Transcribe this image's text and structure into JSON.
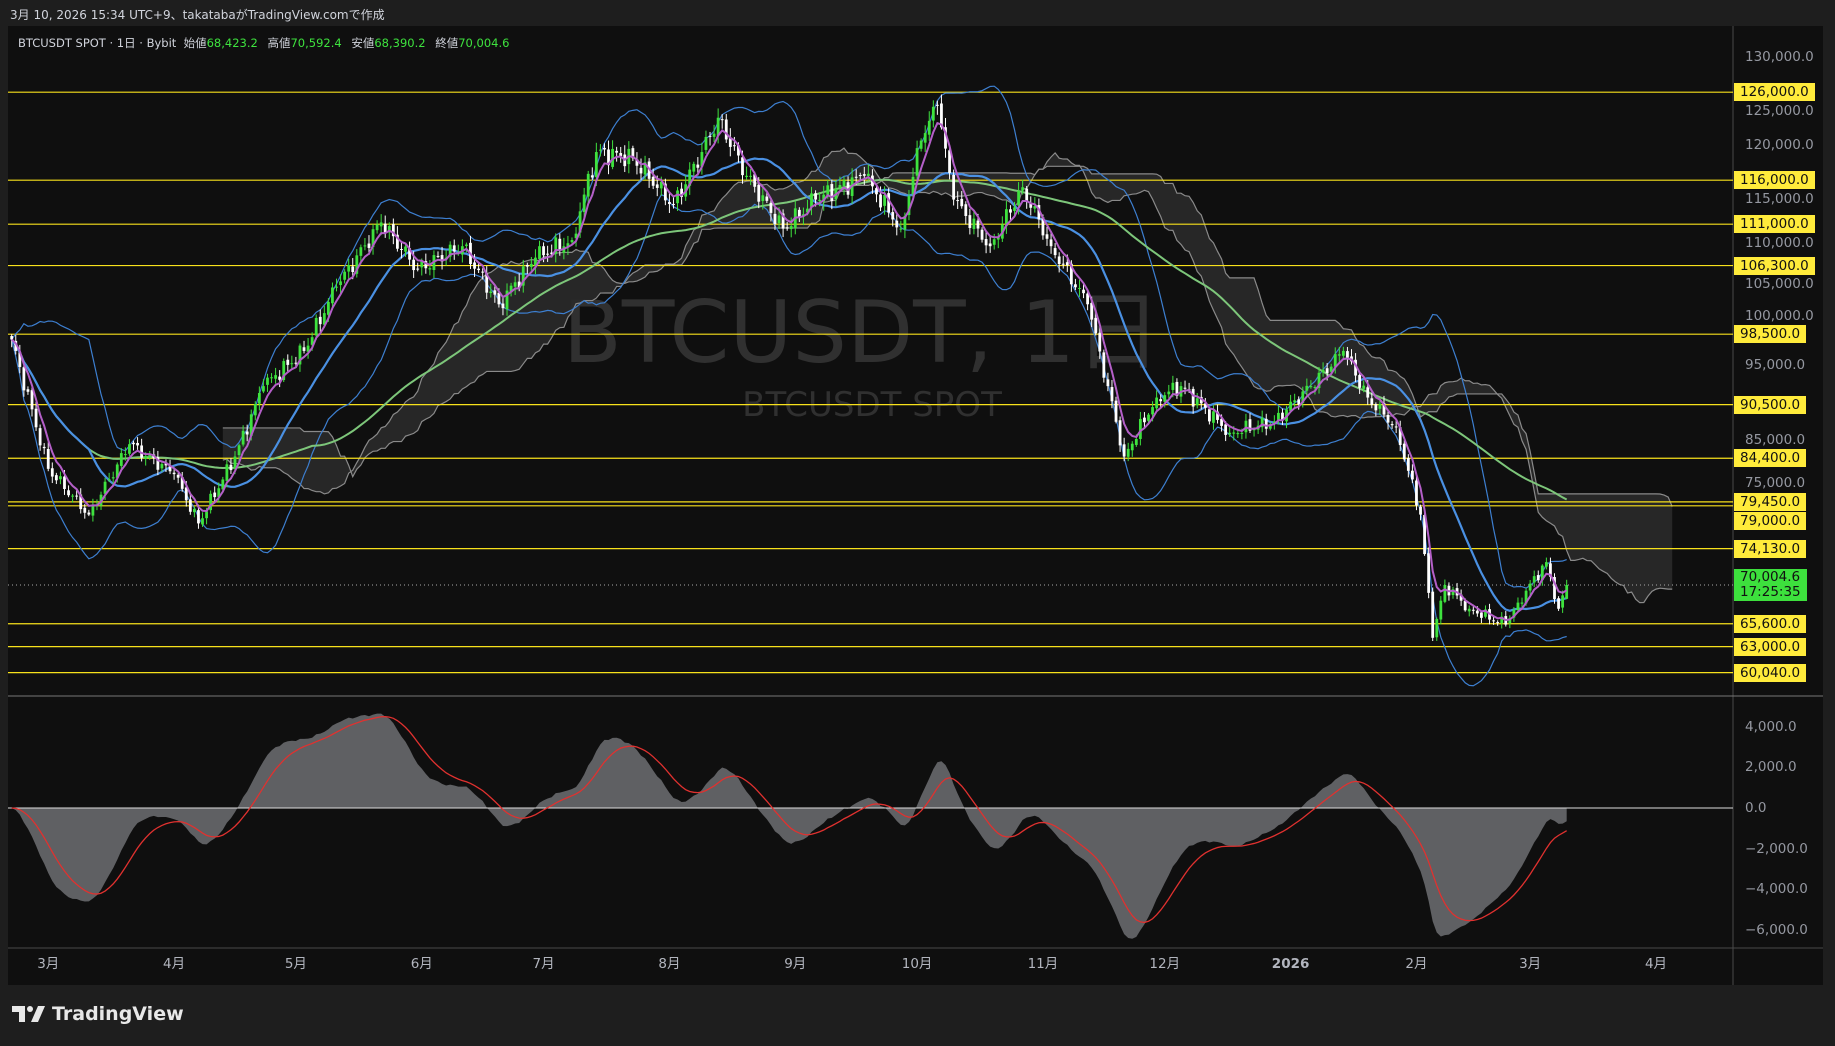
{
  "header": {
    "caption": "3月 10, 2026 15:34 UTC+9、takatabaがTradingView.comで作成"
  },
  "legend": {
    "symbol": "BTCUSDT SPOT · 1日 · Bybit",
    "open_label": "始値",
    "open": "68,423.2",
    "high_label": "高値",
    "high": "70,592.4",
    "low_label": "安値",
    "low": "68,390.2",
    "close_label": "終値",
    "close": "70,004.6"
  },
  "watermark": {
    "title": "BTCUSDT, 1日",
    "subtitle": "BTCUSDT SPOT"
  },
  "price_axis": {
    "ticks": [
      {
        "value": 130000,
        "label": "130,000.0"
      },
      {
        "value": 125000,
        "label": "125,000.0"
      },
      {
        "value": 120000,
        "label": "120,000.0"
      },
      {
        "value": 115000,
        "label": "115,000.0"
      },
      {
        "value": 110000,
        "label": "110,000.0"
      },
      {
        "value": 105000,
        "label": "105,000.0"
      },
      {
        "value": 100000,
        "label": "100,000.0"
      },
      {
        "value": 95000,
        "label": "95,000.0"
      },
      {
        "value": 85000,
        "label": "85,000.0"
      },
      {
        "value": 75000,
        "label": "75,000.0"
      }
    ]
  },
  "levels": [
    {
      "value": 126000,
      "label": "126,000.0"
    },
    {
      "value": 116000,
      "label": "116,000.0"
    },
    {
      "value": 111000,
      "label": "111,000.0"
    },
    {
      "value": 106300,
      "label": "106,300.0"
    },
    {
      "value": 98500,
      "label": "98,500.0"
    },
    {
      "value": 90500,
      "label": "90,500.0"
    },
    {
      "value": 84400,
      "label": "84,400.0"
    },
    {
      "value": 79450,
      "label": "79,450.0"
    },
    {
      "value": 79000,
      "label": "79,000.0"
    },
    {
      "value": 74130,
      "label": "74,130.0"
    },
    {
      "value": 65600,
      "label": "65,600.0"
    },
    {
      "value": 63000,
      "label": "63,000.0"
    },
    {
      "value": 60040,
      "label": "60,040.0"
    }
  ],
  "current": {
    "value": 70004.6,
    "label": "70,004.6",
    "countdown": "17:25:35"
  },
  "macd_axis": {
    "ticks": [
      {
        "value": 4000,
        "label": "4,000.0"
      },
      {
        "value": 2000,
        "label": "2,000.0"
      },
      {
        "value": 0,
        "label": "0.0"
      },
      {
        "value": -2000,
        "label": "−2,000.0"
      },
      {
        "value": -4000,
        "label": "−4,000.0"
      },
      {
        "value": -6000,
        "label": "−6,000.0"
      }
    ]
  },
  "time_axis": {
    "labels": [
      {
        "label": "3月",
        "date": "2025-03-01"
      },
      {
        "label": "4月",
        "date": "2025-04-01"
      },
      {
        "label": "5月",
        "date": "2025-05-01"
      },
      {
        "label": "6月",
        "date": "2025-06-01"
      },
      {
        "label": "7月",
        "date": "2025-07-01"
      },
      {
        "label": "8月",
        "date": "2025-08-01"
      },
      {
        "label": "9月",
        "date": "2025-09-01"
      },
      {
        "label": "10月",
        "date": "2025-10-01"
      },
      {
        "label": "11月",
        "date": "2025-11-01"
      },
      {
        "label": "12月",
        "date": "2025-12-01"
      },
      {
        "label": "2026",
        "date": "2026-01-01"
      },
      {
        "label": "2月",
        "date": "2026-02-01"
      },
      {
        "label": "3月",
        "date": "2026-03-01"
      },
      {
        "label": "4月",
        "date": "2026-04-01"
      }
    ]
  },
  "brand": {
    "name": "TradingView",
    "logo_icon": "tradingview-logo-icon"
  },
  "colors": {
    "up": "#3ee23e",
    "down": "#ffffff",
    "level": "#f7e11b",
    "sma_fast": "#b45fc8",
    "sma_mid": "#4a90e2",
    "bb": "#3d7fd0",
    "ma_long": "#7dc67a",
    "cloud": "#2a2a2a",
    "cloud_edge": "#8a8a8a",
    "macd_fill": "#5f6063",
    "macd_signal": "#e0312f"
  },
  "chart_data": {
    "type": "candlestick",
    "scale": "linear",
    "ylim": [
      56000,
      131000
    ],
    "closes": [
      {
        "date": "2025-02-20",
        "close": 97900
      },
      {
        "date": "2025-03-01",
        "close": 83200
      },
      {
        "date": "2025-03-11",
        "close": 78000
      },
      {
        "date": "2025-03-21",
        "close": 86000
      },
      {
        "date": "2025-04-01",
        "close": 82600
      },
      {
        "date": "2025-04-07",
        "close": 77000
      },
      {
        "date": "2025-04-16",
        "close": 84600
      },
      {
        "date": "2025-04-23",
        "close": 92600
      },
      {
        "date": "2025-05-03",
        "close": 96600
      },
      {
        "date": "2025-05-11",
        "close": 103900
      },
      {
        "date": "2025-05-22",
        "close": 111200
      },
      {
        "date": "2025-05-31",
        "close": 105900
      },
      {
        "date": "2025-06-11",
        "close": 108500
      },
      {
        "date": "2025-06-20",
        "close": 101900
      },
      {
        "date": "2025-06-29",
        "close": 107200
      },
      {
        "date": "2025-07-08",
        "close": 109200
      },
      {
        "date": "2025-07-14",
        "close": 119200
      },
      {
        "date": "2025-07-23",
        "close": 118500
      },
      {
        "date": "2025-08-02",
        "close": 113200
      },
      {
        "date": "2025-08-09",
        "close": 119200
      },
      {
        "date": "2025-08-13",
        "close": 123100
      },
      {
        "date": "2025-08-20",
        "close": 116500
      },
      {
        "date": "2025-08-29",
        "close": 110500
      },
      {
        "date": "2025-09-06",
        "close": 113800
      },
      {
        "date": "2025-09-18",
        "close": 116500
      },
      {
        "date": "2025-09-27",
        "close": 110500
      },
      {
        "date": "2025-10-02",
        "close": 120500
      },
      {
        "date": "2025-10-06",
        "close": 124500
      },
      {
        "date": "2025-10-10",
        "close": 113800
      },
      {
        "date": "2025-10-19",
        "close": 108500
      },
      {
        "date": "2025-10-27",
        "close": 115200
      },
      {
        "date": "2025-11-03",
        "close": 108500
      },
      {
        "date": "2025-11-12",
        "close": 101900
      },
      {
        "date": "2025-11-17",
        "close": 92600
      },
      {
        "date": "2025-11-21",
        "close": 84600
      },
      {
        "date": "2025-11-29",
        "close": 91300
      },
      {
        "date": "2025-12-05",
        "close": 92600
      },
      {
        "date": "2025-12-17",
        "close": 87300
      },
      {
        "date": "2025-12-28",
        "close": 88600
      },
      {
        "date": "2026-01-06",
        "close": 92600
      },
      {
        "date": "2026-01-14",
        "close": 96600
      },
      {
        "date": "2026-01-20",
        "close": 91300
      },
      {
        "date": "2026-01-27",
        "close": 87900
      },
      {
        "date": "2026-02-02",
        "close": 78000
      },
      {
        "date": "2026-02-05",
        "close": 64000
      },
      {
        "date": "2026-02-08",
        "close": 70000
      },
      {
        "date": "2026-02-14",
        "close": 67300
      },
      {
        "date": "2026-02-23",
        "close": 65500
      },
      {
        "date": "2026-02-26",
        "close": 68000
      },
      {
        "date": "2026-03-05",
        "close": 72600
      },
      {
        "date": "2026-03-08",
        "close": 67300
      },
      {
        "date": "2026-03-10",
        "close": 70004.6
      }
    ]
  }
}
